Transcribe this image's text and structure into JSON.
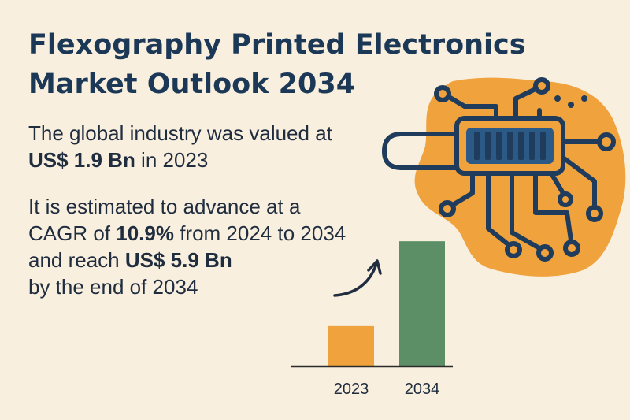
{
  "title": {
    "line1": "Flexography Printed Electronics",
    "line2": "Market Outlook 2034"
  },
  "intro": {
    "line1": "The global industry was valued at",
    "value": "US$ 1.9 Bn",
    "year_text": " in 2023"
  },
  "forecast": {
    "line1": "It is estimated to advance at a",
    "cagr_prefix": "CAGR of ",
    "cagr": "10.9%",
    "cagr_suffix": " from 2024 to 2034",
    "reach_prefix": "and reach ",
    "reach_value": "US$ 5.9 Bn",
    "line4": "by the end of 2034"
  },
  "colors": {
    "background": "#f9efdf",
    "title": "#1c3857",
    "bar_2023": "#f0a23d",
    "bar_2034": "#5c8f66",
    "circuit_blob": "#f0a23d",
    "circuit_lines": "#1f3c5c"
  },
  "icons": {
    "illustration": "circuit-board-icon",
    "growth_arrow": "curved-arrow-icon"
  },
  "chart_data": {
    "type": "bar",
    "categories": [
      "2023",
      "2034"
    ],
    "values": [
      1.9,
      5.9
    ],
    "colors": [
      "#f0a23d",
      "#5c8f66"
    ],
    "title": "",
    "xlabel": "",
    "ylabel": "",
    "ylim": [
      0,
      6.5
    ],
    "grid": false
  }
}
